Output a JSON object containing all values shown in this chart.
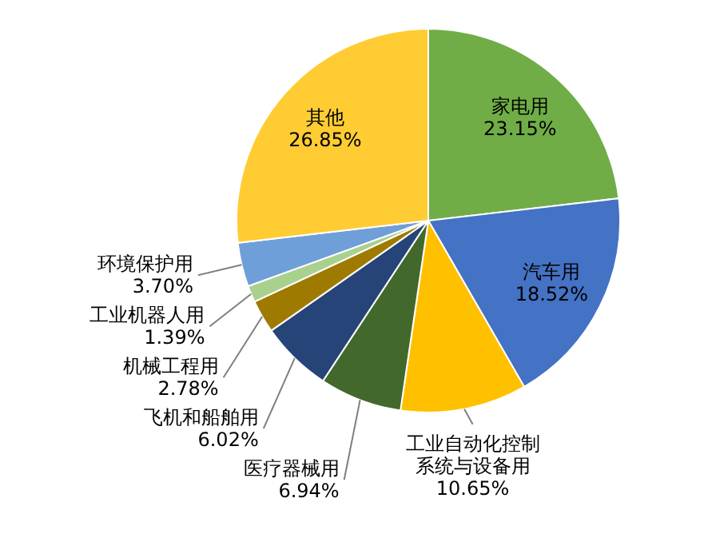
{
  "chart_data": {
    "type": "pie",
    "categories": [
      "家电用",
      "汽车用",
      "工业自动化控制系统与设备用",
      "医疗器械用",
      "飞机和船舶用",
      "机械工程用",
      "工业机器人用",
      "环境保护用",
      "其他"
    ],
    "values": [
      23.15,
      18.52,
      10.65,
      6.94,
      6.02,
      2.78,
      1.39,
      3.7,
      26.85
    ],
    "colors": [
      "#70ad47",
      "#4472c4",
      "#ffc000",
      "#43682b",
      "#264478",
      "#9e7b00",
      "#a9d18e",
      "#6f9fd8",
      "#ffcc33"
    ],
    "value_labels": [
      "23.15%",
      "18.52%",
      "10.65%",
      "6.94%",
      "6.02%",
      "2.78%",
      "1.39%",
      "3.70%",
      "26.85%"
    ]
  }
}
